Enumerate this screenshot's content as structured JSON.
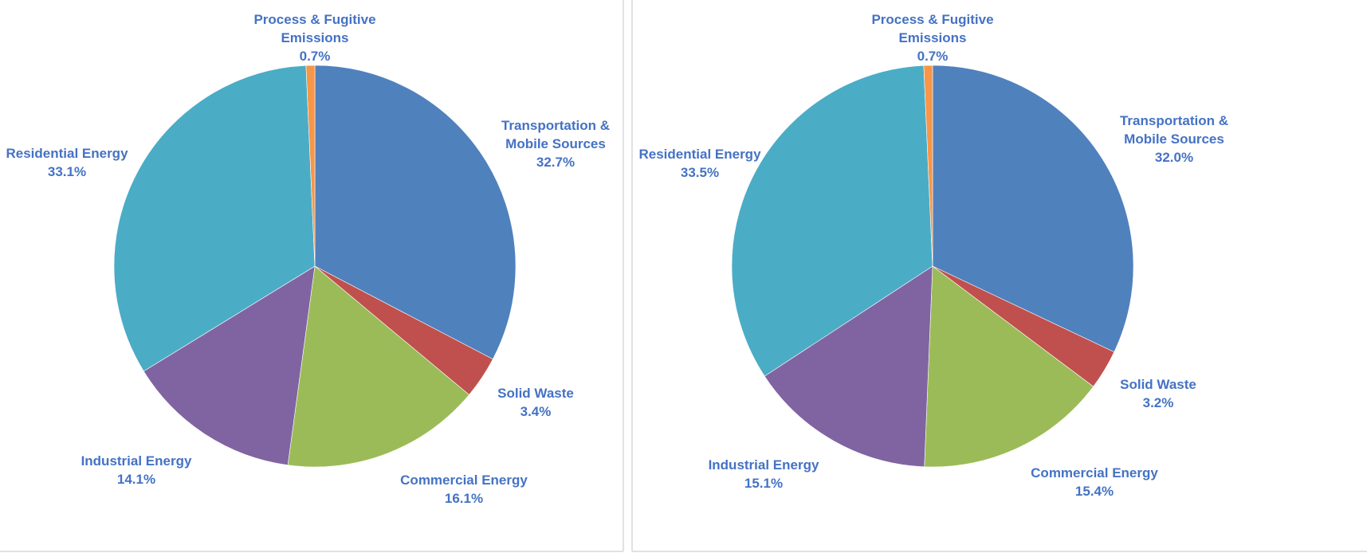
{
  "chart_data": [
    {
      "type": "pie",
      "start": "top",
      "direction": "clockwise",
      "categories": [
        "Transportation & Mobile Sources",
        "Solid Waste",
        "Commercial Energy",
        "Industrial Energy",
        "Residential Energy",
        "Process & Fugitive Emissions"
      ],
      "label_lines": [
        [
          "Transportation &",
          "Mobile Sources"
        ],
        [
          "Solid Waste"
        ],
        [
          "Commercial Energy"
        ],
        [
          "Industrial Energy"
        ],
        [
          "Residential Energy"
        ],
        [
          "Process & Fugitive",
          "Emissions"
        ]
      ],
      "values": [
        32.7,
        3.4,
        16.1,
        14.1,
        33.1,
        0.7
      ],
      "value_labels": [
        "32.7%",
        "3.4%",
        "16.1%",
        "14.1%",
        "33.1%",
        "0.7%"
      ],
      "colors": [
        "#4F81BD",
        "#C0504D",
        "#9BBB59",
        "#8064A2",
        "#4BACC6",
        "#F79646"
      ],
      "label_color": "#4472C4"
    },
    {
      "type": "pie",
      "start": "top",
      "direction": "clockwise",
      "categories": [
        "Transportation & Mobile Sources",
        "Solid Waste",
        "Commercial Energy",
        "Industrial Energy",
        "Residential Energy",
        "Process & Fugitive Emissions"
      ],
      "label_lines": [
        [
          "Transportation &",
          "Mobile Sources"
        ],
        [
          "Solid Waste"
        ],
        [
          "Commercial Energy"
        ],
        [
          "Industrial Energy"
        ],
        [
          "Residential Energy"
        ],
        [
          "Process & Fugitive",
          "Emissions"
        ]
      ],
      "values": [
        32.0,
        3.2,
        15.4,
        15.1,
        33.5,
        0.7
      ],
      "value_labels": [
        "32.0%",
        "3.2%",
        "15.4%",
        "15.1%",
        "33.5%",
        "0.7%"
      ],
      "colors": [
        "#4F81BD",
        "#C0504D",
        "#9BBB59",
        "#8064A2",
        "#4BACC6",
        "#F79646"
      ],
      "label_color": "#4472C4"
    }
  ]
}
